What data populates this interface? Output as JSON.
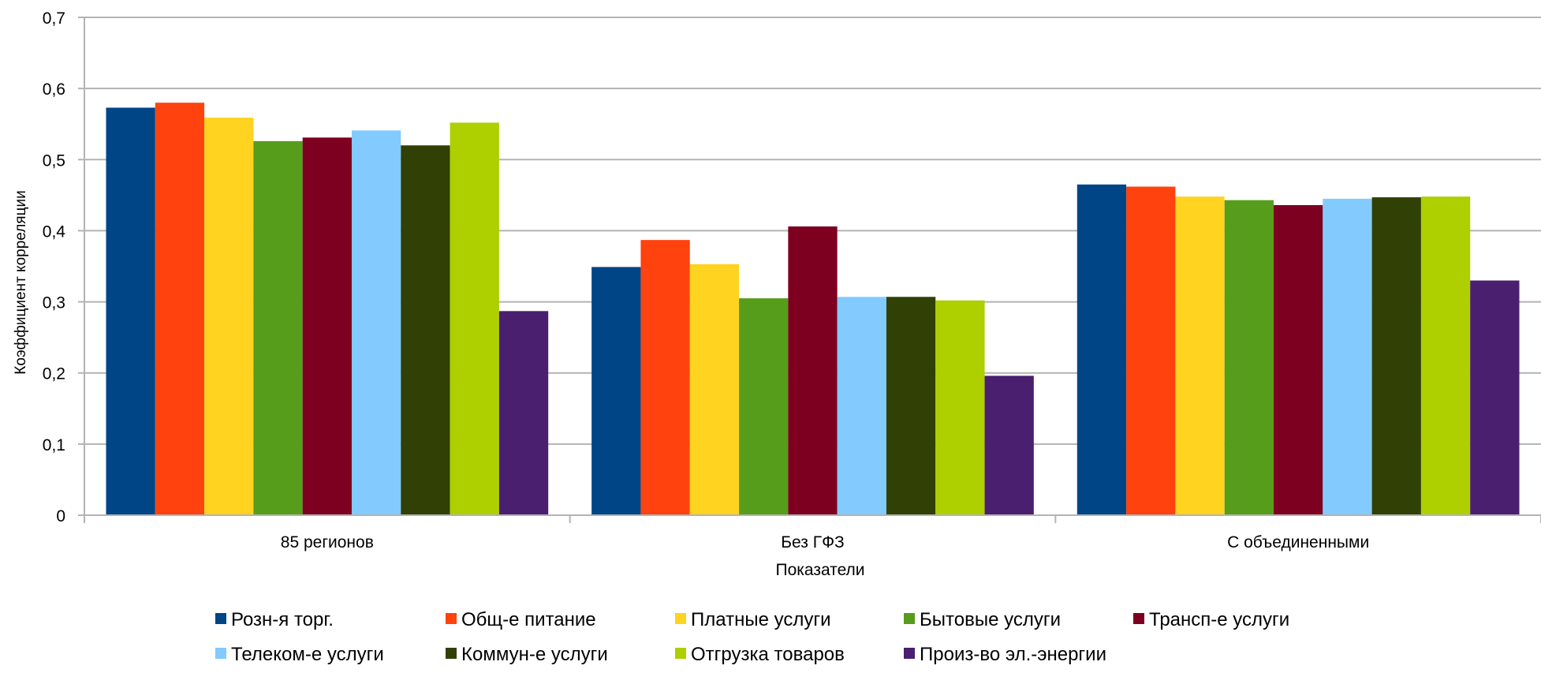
{
  "chart_data": {
    "type": "bar",
    "xlabel": "Показатели",
    "ylabel": "Коэффициент корреляции",
    "ylim": [
      0,
      0.7
    ],
    "yticks": [
      0,
      0.1,
      0.2,
      0.3,
      0.4,
      0.5,
      0.6,
      0.7
    ],
    "ytick_labels": [
      "0",
      "0,1",
      "0,2",
      "0,3",
      "0,4",
      "0,5",
      "0,6",
      "0,7"
    ],
    "grid": true,
    "legend_position": "bottom",
    "categories": [
      "85 регионов",
      "Без ГФЗ",
      "С объединенными"
    ],
    "series": [
      {
        "name": "Розн-я торг.",
        "color": "#004586",
        "values": [
          0.573,
          0.349,
          0.465
        ]
      },
      {
        "name": "Общ-е питание",
        "color": "#FF420E",
        "values": [
          0.58,
          0.387,
          0.462
        ]
      },
      {
        "name": "Платные услуги",
        "color": "#FFD320",
        "values": [
          0.559,
          0.353,
          0.448
        ]
      },
      {
        "name": "Бытовые услуги",
        "color": "#579D1C",
        "values": [
          0.526,
          0.305,
          0.443
        ]
      },
      {
        "name": "Трансп-е услуги",
        "color": "#7E0021",
        "values": [
          0.531,
          0.406,
          0.436
        ]
      },
      {
        "name": "Телеком-е услуги",
        "color": "#83CAFF",
        "values": [
          0.541,
          0.307,
          0.445
        ]
      },
      {
        "name": "Коммун-е услуги",
        "color": "#314004",
        "values": [
          0.52,
          0.307,
          0.447
        ]
      },
      {
        "name": "Отгрузка товаров",
        "color": "#AECF00",
        "values": [
          0.552,
          0.302,
          0.448
        ]
      },
      {
        "name": "Произ-во эл.-энергии",
        "color": "#4B1F6F",
        "values": [
          0.287,
          0.196,
          0.33
        ]
      }
    ]
  }
}
